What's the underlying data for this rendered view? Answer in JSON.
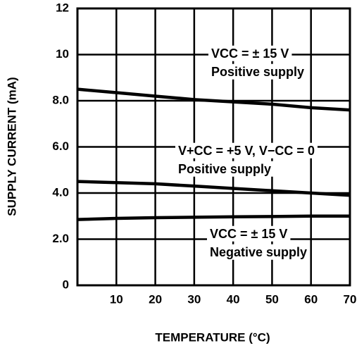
{
  "chart_data": {
    "type": "line",
    "x": [
      0,
      10,
      20,
      30,
      40,
      50,
      60,
      70
    ],
    "series": [
      {
        "name": [
          "VCC = ± 15 V",
          "Positive supply"
        ],
        "color": "#000000",
        "values": [
          8.5,
          8.35,
          8.2,
          8.05,
          7.95,
          7.85,
          7.7,
          7.6
        ]
      },
      {
        "name": [
          "V+CC = +5 V, V−CC = 0",
          "Positive supply"
        ],
        "color": "#000000",
        "values": [
          4.5,
          4.45,
          4.4,
          4.3,
          4.2,
          4.1,
          4.0,
          3.9
        ]
      },
      {
        "name": [
          "VCC = ± 15 V",
          "Negative supply"
        ],
        "color": "#000000",
        "values": [
          2.85,
          2.9,
          2.93,
          2.95,
          2.97,
          2.98,
          3.0,
          3.0
        ]
      }
    ],
    "xlabel": "TEMPERATURE (°C)",
    "ylabel": "SUPPLY CURRENT (mA)",
    "xlim": [
      0,
      70
    ],
    "xticks": [
      10,
      20,
      30,
      40,
      50,
      60,
      70
    ],
    "ylim": [
      0,
      12
    ],
    "yticks": [
      0,
      {
        "value": 2,
        "label": "2.0"
      },
      {
        "value": 4,
        "label": "4.0"
      },
      {
        "value": 6,
        "label": "6.0"
      },
      {
        "value": 8,
        "label": "8.0"
      },
      10,
      12
    ],
    "grid": true
  }
}
